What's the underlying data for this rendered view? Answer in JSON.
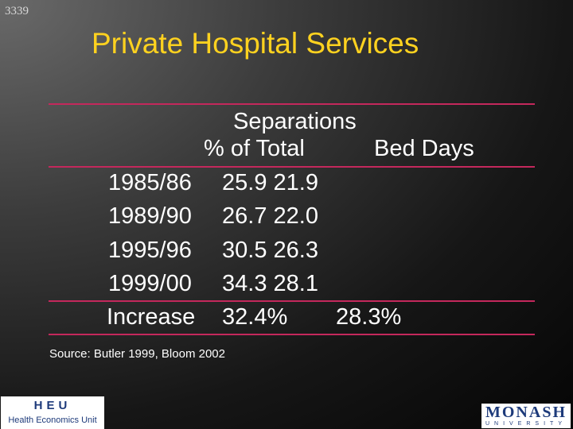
{
  "slide_number": "3339",
  "title": "Private Hospital Services",
  "table": {
    "header_line1": "Separations",
    "header_col1": "% of Total",
    "header_col2": "Bed Days",
    "rows": [
      {
        "label": "1985/86",
        "values": "25.9 21.9"
      },
      {
        "label": "1989/90",
        "values": "26.7 22.0"
      },
      {
        "label": "1995/96",
        "values": "30.5 26.3"
      },
      {
        "label": "1999/00",
        "values": "34.3 28.1"
      }
    ],
    "increase": {
      "label": "Increase",
      "separations": "32.4%",
      "bed_days": "28.3%"
    }
  },
  "source": "Source:  Butler 1999, Bloom 2002",
  "logos": {
    "heu_mark": "HEU",
    "heu_name": "Health Economics Unit",
    "monash_name": "MONASH",
    "monash_sub": "UNIVERSITY"
  },
  "colors": {
    "title": "#ffd21f",
    "rule": "#c4285c",
    "logo_blue": "#1d3a7a"
  }
}
